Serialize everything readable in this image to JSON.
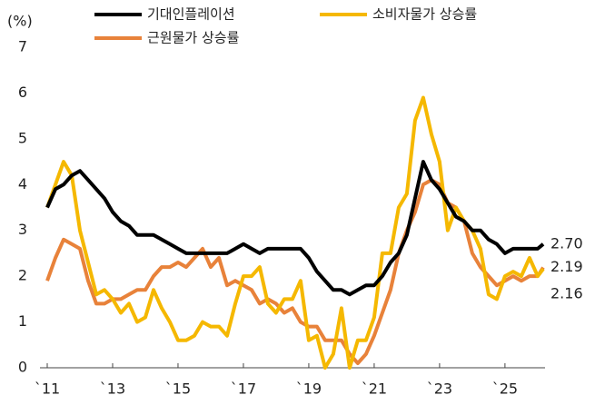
{
  "chart_data": {
    "type": "line",
    "y_label": "(%)",
    "x": [
      2011,
      2011.25,
      2011.5,
      2011.75,
      2012,
      2012.25,
      2012.5,
      2012.75,
      2013,
      2013.25,
      2013.5,
      2013.75,
      2014,
      2014.25,
      2014.5,
      2014.75,
      2015,
      2015.25,
      2015.5,
      2015.75,
      2016,
      2016.25,
      2016.5,
      2016.75,
      2017,
      2017.25,
      2017.5,
      2017.75,
      2018,
      2018.25,
      2018.5,
      2018.75,
      2019,
      2019.25,
      2019.5,
      2019.75,
      2020,
      2020.25,
      2020.5,
      2020.75,
      2021,
      2021.25,
      2021.5,
      2021.75,
      2022,
      2022.25,
      2022.5,
      2022.75,
      2023,
      2023.25,
      2023.5,
      2023.75,
      2024,
      2024.25,
      2024.5,
      2024.75,
      2025,
      2025.25,
      2025.5,
      2025.75,
      2026,
      2026.17
    ],
    "series": [
      {
        "name": "기대인플레이션",
        "color": "#000000",
        "values": [
          3.5,
          3.9,
          4.0,
          4.2,
          4.3,
          4.1,
          3.9,
          3.7,
          3.4,
          3.2,
          3.1,
          2.9,
          2.9,
          2.9,
          2.8,
          2.7,
          2.6,
          2.5,
          2.5,
          2.5,
          2.5,
          2.5,
          2.5,
          2.6,
          2.7,
          2.6,
          2.5,
          2.6,
          2.6,
          2.6,
          2.6,
          2.6,
          2.4,
          2.1,
          1.9,
          1.7,
          1.7,
          1.6,
          1.7,
          1.8,
          1.8,
          2.0,
          2.3,
          2.5,
          2.9,
          3.7,
          4.5,
          4.1,
          3.9,
          3.6,
          3.3,
          3.2,
          3.0,
          3.0,
          2.8,
          2.7,
          2.5,
          2.6,
          2.6,
          2.6,
          2.6,
          2.7
        ],
        "value_labels": [
          null,
          null,
          null,
          null,
          null,
          null,
          null,
          null,
          null,
          null,
          null,
          null,
          null,
          null,
          null,
          null,
          null,
          null,
          null,
          null,
          null,
          null,
          null,
          null,
          null,
          null,
          null,
          null,
          null,
          null,
          null,
          null,
          null,
          null,
          null,
          null,
          null,
          null,
          null,
          null,
          null,
          null,
          null,
          null,
          null,
          null,
          null,
          null,
          null,
          null,
          null,
          null,
          null,
          null,
          null,
          null,
          null,
          null,
          null,
          null,
          null,
          "2.70"
        ]
      },
      {
        "name": "소비자물가 상승률",
        "color": "#f5b800",
        "values": [
          3.5,
          4.0,
          4.5,
          4.2,
          3.0,
          2.3,
          1.6,
          1.7,
          1.5,
          1.2,
          1.4,
          1.0,
          1.1,
          1.7,
          1.3,
          1.0,
          0.6,
          0.6,
          0.7,
          1.0,
          0.9,
          0.9,
          0.7,
          1.4,
          2.0,
          2.0,
          2.2,
          1.4,
          1.2,
          1.5,
          1.5,
          1.9,
          0.6,
          0.7,
          0.0,
          0.3,
          1.3,
          0.0,
          0.6,
          0.6,
          1.1,
          2.5,
          2.5,
          3.5,
          3.8,
          5.4,
          5.9,
          5.1,
          4.5,
          3.0,
          3.5,
          3.2,
          3.0,
          2.6,
          1.6,
          1.5,
          2.0,
          2.1,
          2.0,
          2.4,
          2.0,
          2.16
        ],
        "value_labels": [
          null,
          null,
          null,
          null,
          null,
          null,
          null,
          null,
          null,
          null,
          null,
          null,
          null,
          null,
          null,
          null,
          null,
          null,
          null,
          null,
          null,
          null,
          null,
          null,
          null,
          null,
          null,
          null,
          null,
          null,
          null,
          null,
          null,
          null,
          null,
          null,
          null,
          null,
          null,
          null,
          null,
          null,
          null,
          null,
          null,
          null,
          null,
          null,
          null,
          null,
          null,
          null,
          null,
          null,
          null,
          null,
          null,
          null,
          null,
          null,
          null,
          "2.16"
        ]
      },
      {
        "name": "근원물가 상승률",
        "color": "#e8823a",
        "values": [
          1.9,
          2.4,
          2.8,
          2.7,
          2.6,
          1.9,
          1.4,
          1.4,
          1.5,
          1.5,
          1.6,
          1.7,
          1.7,
          2.0,
          2.2,
          2.2,
          2.3,
          2.2,
          2.4,
          2.6,
          2.2,
          2.4,
          1.8,
          1.9,
          1.8,
          1.7,
          1.4,
          1.5,
          1.4,
          1.2,
          1.3,
          1.0,
          0.9,
          0.9,
          0.6,
          0.6,
          0.6,
          0.3,
          0.1,
          0.3,
          0.7,
          1.2,
          1.7,
          2.5,
          3.0,
          3.4,
          4.0,
          4.1,
          4.0,
          3.6,
          3.5,
          3.2,
          2.5,
          2.2,
          2.0,
          1.8,
          1.9,
          2.0,
          1.9,
          2.0,
          2.0,
          2.19
        ],
        "value_labels": [
          null,
          null,
          null,
          null,
          null,
          null,
          null,
          null,
          null,
          null,
          null,
          null,
          null,
          null,
          null,
          null,
          null,
          null,
          null,
          null,
          null,
          null,
          null,
          null,
          null,
          null,
          null,
          null,
          null,
          null,
          null,
          null,
          null,
          null,
          null,
          null,
          null,
          null,
          null,
          null,
          null,
          null,
          null,
          null,
          null,
          null,
          null,
          null,
          null,
          null,
          null,
          null,
          null,
          null,
          null,
          null,
          null,
          null,
          null,
          null,
          null,
          "2.19"
        ]
      }
    ],
    "xlim": [
      2011,
      2026.17
    ],
    "xticks": [
      {
        "value": 2011,
        "label": "`11"
      },
      {
        "value": 2013,
        "label": "`13"
      },
      {
        "value": 2015,
        "label": "`15"
      },
      {
        "value": 2017,
        "label": "`17"
      },
      {
        "value": 2019,
        "label": "`19"
      },
      {
        "value": 2021,
        "label": "`21"
      },
      {
        "value": 2023,
        "label": "`23"
      },
      {
        "value": 2025,
        "label": "`25"
      }
    ],
    "ylim": [
      0,
      7
    ],
    "yticks": [
      0,
      1,
      2,
      3,
      4,
      5,
      6,
      7
    ],
    "grid": false
  }
}
